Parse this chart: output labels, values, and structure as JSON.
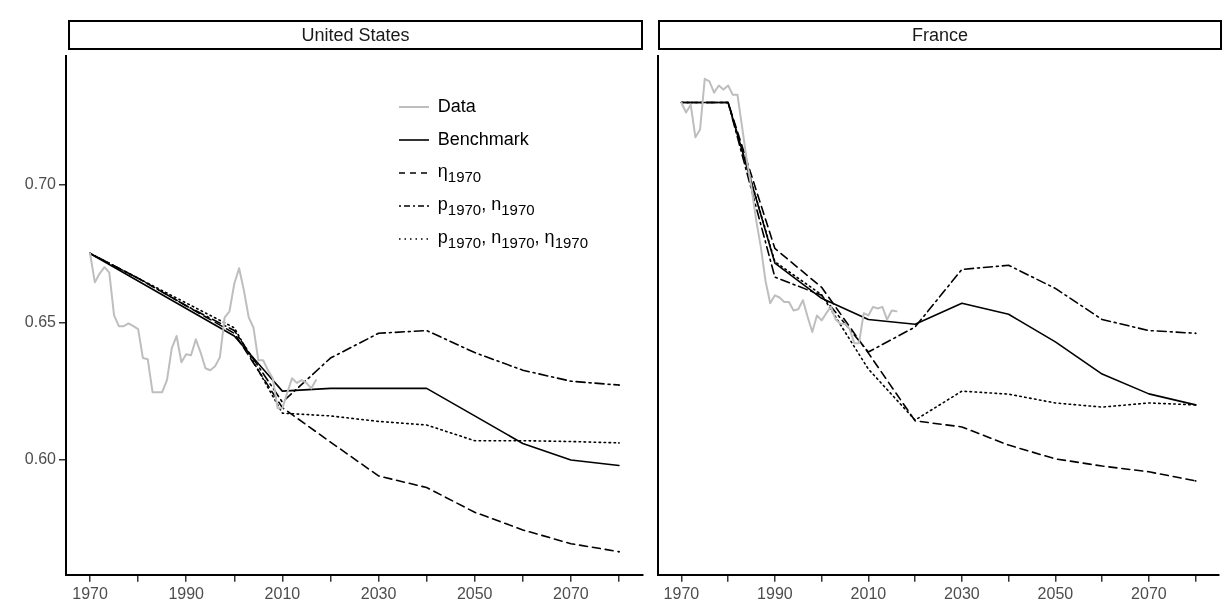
{
  "chart_data": [
    {
      "type": "line",
      "title": "United States",
      "marker": "none",
      "legend": "top right",
      "xlim": [
        1965,
        2085
      ],
      "ylim": [
        0.5583,
        0.7467
      ],
      "xticks": [
        1970,
        {
          "value": 1980,
          "label": null
        },
        1990,
        {
          "value": 2000,
          "label": null
        },
        2010,
        {
          "value": 2020,
          "label": null
        },
        2030,
        {
          "value": 2040,
          "label": null
        },
        2050,
        {
          "value": 2060,
          "label": null
        },
        2070,
        {
          "value": 2080,
          "label": null
        }
      ],
      "yticks": [
        {
          "value": 0.6,
          "label": "0.60"
        },
        {
          "value": 0.65,
          "label": "0.65"
        },
        {
          "value": 0.7,
          "label": "0.70"
        }
      ],
      "series": [
        {
          "name": "Data",
          "color": "#bebebe",
          "line_style": "solid",
          "x": [
            1970,
            1971,
            1972,
            1973,
            1974,
            1975,
            1976,
            1977,
            1978,
            1979,
            1980,
            1981,
            1982,
            1983,
            1984,
            1985,
            1986,
            1987,
            1988,
            1989,
            1990,
            1991,
            1992,
            1993,
            1994,
            1995,
            1996,
            1997,
            1998,
            1999,
            2000,
            2001,
            2002,
            2003,
            2004,
            2005,
            2006,
            2007,
            2008,
            2009,
            2010,
            2011,
            2012,
            2013,
            2014,
            2015,
            2016,
            2017
          ],
          "values": [
            0.675,
            0.6645,
            0.6677,
            0.67,
            0.668,
            0.6525,
            0.6486,
            0.6486,
            0.6496,
            0.6486,
            0.6475,
            0.637,
            0.6366,
            0.6246,
            0.6246,
            0.6246,
            0.629,
            0.6406,
            0.645,
            0.6355,
            0.6384,
            0.638,
            0.6438,
            0.639,
            0.6333,
            0.6326,
            0.634,
            0.6373,
            0.6518,
            0.654,
            0.664,
            0.6696,
            0.6616,
            0.6518,
            0.648,
            0.6362,
            0.6362,
            0.6326,
            0.6297,
            0.6188,
            0.6188,
            0.6243,
            0.6297,
            0.628,
            0.629,
            0.628,
            0.626,
            0.629
          ]
        },
        {
          "name": "Benchmark",
          "color": "#000000",
          "line_style": "solid",
          "x": [
            1970,
            1980,
            1990,
            2000,
            2010,
            2020,
            2030,
            2040,
            2050,
            2060,
            2070,
            2080
          ],
          "values": [
            0.675,
            0.665,
            0.655,
            0.645,
            0.625,
            0.626,
            0.626,
            0.626,
            0.616,
            0.606,
            0.6,
            0.598
          ]
        },
        {
          "name": "η$_{1970}$",
          "color": "#000000",
          "line_style": "dashed",
          "x": [
            1970,
            1980,
            1990,
            2000,
            2010,
            2020,
            2030,
            2040,
            2050,
            2060,
            2070,
            2080
          ],
          "values": [
            0.675,
            0.666,
            0.656,
            0.646,
            0.619,
            0.6065,
            0.5942,
            0.59,
            0.581,
            0.5746,
            0.5696,
            0.5667
          ]
        },
        {
          "name": "p$_{1970}$, n$_{1970}$",
          "color": "#000000",
          "line_style": "dashdot",
          "x": [
            1970,
            1980,
            1990,
            2000,
            2010,
            2020,
            2030,
            2040,
            2050,
            2060,
            2070,
            2080
          ],
          "values": [
            0.675,
            0.666,
            0.656,
            0.647,
            0.621,
            0.637,
            0.646,
            0.647,
            0.639,
            0.6326,
            0.6286,
            0.6272
          ]
        },
        {
          "name": "p$_{1970}$, n$_{1970}$, η$_{1970}$",
          "color": "#000000",
          "line_style": "dotted",
          "x": [
            1970,
            1980,
            1990,
            2000,
            2010,
            2020,
            2030,
            2040,
            2050,
            2060,
            2070,
            2080
          ],
          "values": [
            0.675,
            0.666,
            0.657,
            0.648,
            0.617,
            0.616,
            0.614,
            0.6127,
            0.607,
            0.607,
            0.6067,
            0.6062
          ]
        }
      ]
    },
    {
      "type": "line",
      "title": "France",
      "marker": "none",
      "legend": false,
      "tick_labels": "x",
      "xlim": [
        1965,
        2085
      ],
      "ylim": [
        0.5583,
        0.7467
      ],
      "xticks": [
        1970,
        {
          "value": 1980,
          "label": null
        },
        1990,
        {
          "value": 2000,
          "label": null
        },
        2010,
        {
          "value": 2020,
          "label": null
        },
        2030,
        {
          "value": 2040,
          "label": null
        },
        2050,
        {
          "value": 2060,
          "label": null
        },
        2070,
        {
          "value": 2080,
          "label": null
        }
      ],
      "series": [
        {
          "color": "#bebebe",
          "line_style": "solid",
          "x": [
            1970,
            1971,
            1972,
            1973,
            1974,
            1975,
            1976,
            1977,
            1978,
            1979,
            1980,
            1981,
            1982,
            1983,
            1984,
            1985,
            1986,
            1987,
            1988,
            1989,
            1990,
            1991,
            1992,
            1993,
            1994,
            1995,
            1996,
            1997,
            1998,
            1999,
            2000,
            2001,
            2002,
            2003,
            2004,
            2005,
            2006,
            2007,
            2008,
            2009,
            2010,
            2011,
            2012,
            2013,
            2014,
            2015,
            2016
          ],
          "values": [
            0.7298,
            0.7262,
            0.729,
            0.7172,
            0.72,
            0.7384,
            0.7375,
            0.7334,
            0.736,
            0.7345,
            0.736,
            0.7326,
            0.7326,
            0.7208,
            0.7087,
            0.699,
            0.687,
            0.6773,
            0.665,
            0.6569,
            0.6598,
            0.659,
            0.6574,
            0.6574,
            0.6543,
            0.6547,
            0.658,
            0.652,
            0.6465,
            0.6525,
            0.6507,
            0.6533,
            0.6556,
            0.651,
            0.6495,
            0.6495,
            0.6475,
            0.6424,
            0.6424,
            0.6533,
            0.6525,
            0.6556,
            0.655,
            0.6556,
            0.651,
            0.6543,
            0.654
          ]
        },
        {
          "color": "#000000",
          "line_style": "solid",
          "x": [
            1970,
            1980,
            1990,
            2000,
            2010,
            2020,
            2030,
            2040,
            2050,
            2060,
            2070,
            2080
          ],
          "values": [
            0.7298,
            0.7298,
            0.6715,
            0.6587,
            0.651,
            0.6493,
            0.6569,
            0.6529,
            0.6429,
            0.6312,
            0.624,
            0.62
          ]
        },
        {
          "color": "#000000",
          "line_style": "dashed",
          "x": [
            1970,
            1980,
            1990,
            2000,
            2010,
            2020,
            2030,
            2040,
            2050,
            2060,
            2070,
            2080
          ],
          "values": [
            0.7298,
            0.7298,
            0.6768,
            0.6627,
            0.6388,
            0.6142,
            0.612,
            0.6054,
            0.6004,
            0.5978,
            0.5957,
            0.5924
          ]
        },
        {
          "color": "#000000",
          "line_style": "dashdot",
          "x": [
            1970,
            1980,
            1990,
            2000,
            2010,
            2020,
            2030,
            2040,
            2050,
            2060,
            2070,
            2080
          ],
          "values": [
            0.7298,
            0.7298,
            0.6664,
            0.6598,
            0.6392,
            0.6483,
            0.6692,
            0.6707,
            0.6623,
            0.651,
            0.647,
            0.646
          ]
        },
        {
          "color": "#000000",
          "line_style": "dotted",
          "x": [
            1970,
            1980,
            1990,
            2000,
            2010,
            2020,
            2030,
            2040,
            2050,
            2060,
            2070,
            2080
          ],
          "values": [
            0.7298,
            0.7298,
            0.672,
            0.66,
            0.633,
            0.6145,
            0.625,
            0.6239,
            0.6207,
            0.6192,
            0.6207,
            0.62
          ]
        }
      ]
    }
  ]
}
